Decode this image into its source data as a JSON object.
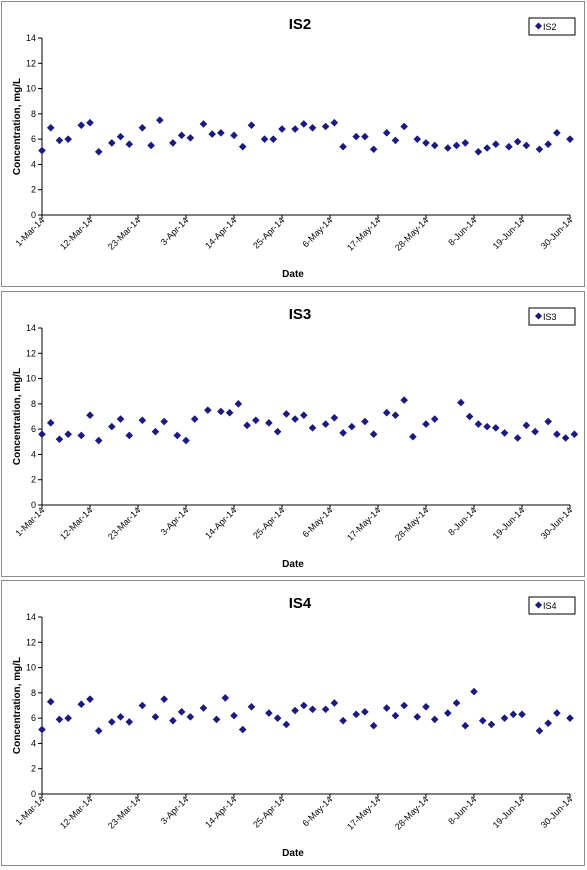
{
  "chart_data": [
    {
      "type": "scatter",
      "title": "IS2",
      "xlabel": "Date",
      "ylabel": "Concentration, mg/L",
      "ylim": [
        0,
        14
      ],
      "yticks": [
        "0",
        "2",
        "4",
        "6",
        "8",
        "10",
        "12",
        "14"
      ],
      "xlim": [
        "1-Mar-14",
        "30-Jun-14"
      ],
      "xticks": [
        "1-Mar-14",
        "12-Mar-14",
        "23-Mar-14",
        "3-Apr-14",
        "14-Apr-14",
        "25-Apr-14",
        "6-May-14",
        "17-May-14",
        "28-May-14",
        "8-Jun-14",
        "19-Jun-14",
        "30-Jun-14"
      ],
      "legend": "top-right",
      "marker_color": "#1a1a80",
      "series": [
        {
          "name": "IS2",
          "x": [
            "1-Mar-14",
            "3-Mar-14",
            "5-Mar-14",
            "7-Mar-14",
            "10-Mar-14",
            "12-Mar-14",
            "14-Mar-14",
            "17-Mar-14",
            "19-Mar-14",
            "21-Mar-14",
            "24-Mar-14",
            "26-Mar-14",
            "28-Mar-14",
            "31-Mar-14",
            "2-Apr-14",
            "4-Apr-14",
            "7-Apr-14",
            "9-Apr-14",
            "11-Apr-14",
            "14-Apr-14",
            "16-Apr-14",
            "18-Apr-14",
            "21-Apr-14",
            "23-Apr-14",
            "25-Apr-14",
            "28-Apr-14",
            "30-Apr-14",
            "2-May-14",
            "5-May-14",
            "7-May-14",
            "9-May-14",
            "12-May-14",
            "14-May-14",
            "16-May-14",
            "19-May-14",
            "21-May-14",
            "23-May-14",
            "26-May-14",
            "28-May-14",
            "30-May-14",
            "2-Jun-14",
            "4-Jun-14",
            "6-Jun-14",
            "9-Jun-14",
            "11-Jun-14",
            "13-Jun-14",
            "16-Jun-14",
            "18-Jun-14",
            "20-Jun-14",
            "23-Jun-14",
            "25-Jun-14",
            "27-Jun-14",
            "30-Jun-14"
          ],
          "y": [
            5.1,
            6.9,
            5.9,
            6.0,
            7.1,
            7.3,
            5.0,
            5.7,
            6.2,
            5.6,
            6.9,
            5.5,
            7.5,
            5.7,
            6.3,
            6.1,
            7.2,
            6.4,
            6.5,
            6.3,
            5.4,
            7.1,
            6.0,
            6.0,
            6.8,
            6.8,
            7.2,
            6.9,
            7.0,
            7.3,
            5.4,
            6.2,
            6.2,
            5.2,
            6.5,
            5.9,
            7.0,
            6.0,
            5.7,
            5.5,
            5.3,
            5.5,
            5.7,
            5.0,
            5.3,
            5.6,
            5.4,
            5.8,
            5.5,
            5.2,
            5.6,
            6.5,
            6.0
          ]
        }
      ]
    },
    {
      "type": "scatter",
      "title": "IS3",
      "xlabel": "Date",
      "ylabel": "Concentration, mg/L",
      "ylim": [
        0,
        14
      ],
      "yticks": [
        "0",
        "2",
        "4",
        "6",
        "8",
        "10",
        "12",
        "14"
      ],
      "xlim": [
        "1-Mar-14",
        "30-Jun-14"
      ],
      "xticks": [
        "1-Mar-14",
        "12-Mar-14",
        "23-Mar-14",
        "3-Apr-14",
        "14-Apr-14",
        "25-Apr-14",
        "6-May-14",
        "17-May-14",
        "28-May-14",
        "8-Jun-14",
        "19-Jun-14",
        "30-Jun-14"
      ],
      "legend": "top-right",
      "marker_color": "#1a1a80",
      "series": [
        {
          "name": "IS3",
          "x": [
            "1-Mar-14",
            "3-Mar-14",
            "5-Mar-14",
            "7-Mar-14",
            "10-Mar-14",
            "12-Mar-14",
            "14-Mar-14",
            "17-Mar-14",
            "19-Mar-14",
            "21-Mar-14",
            "24-Mar-14",
            "27-Mar-14",
            "29-Mar-14",
            "1-Apr-14",
            "3-Apr-14",
            "5-Apr-14",
            "8-Apr-14",
            "11-Apr-14",
            "13-Apr-14",
            "15-Apr-14",
            "17-Apr-14",
            "19-Apr-14",
            "22-Apr-14",
            "24-Apr-14",
            "26-Apr-14",
            "28-Apr-14",
            "30-Apr-14",
            "2-May-14",
            "5-May-14",
            "7-May-14",
            "9-May-14",
            "11-May-14",
            "14-May-14",
            "16-May-14",
            "19-May-14",
            "21-May-14",
            "23-May-14",
            "25-May-14",
            "28-May-14",
            "30-May-14",
            "5-Jun-14",
            "7-Jun-14",
            "9-Jun-14",
            "11-Jun-14",
            "13-Jun-14",
            "15-Jun-14",
            "18-Jun-14",
            "20-Jun-14",
            "22-Jun-14",
            "25-Jun-14",
            "27-Jun-14",
            "29-Jun-14",
            "1-Jul-14"
          ],
          "y": [
            5.6,
            6.5,
            5.2,
            5.6,
            5.5,
            7.1,
            5.1,
            6.2,
            6.8,
            5.5,
            6.7,
            5.8,
            6.6,
            5.5,
            5.1,
            6.8,
            7.5,
            7.4,
            7.3,
            8.0,
            6.3,
            6.7,
            6.5,
            5.8,
            7.2,
            6.8,
            7.1,
            6.1,
            6.4,
            6.9,
            5.7,
            6.2,
            6.6,
            5.6,
            7.3,
            7.1,
            8.3,
            5.4,
            6.4,
            6.8,
            8.1,
            7.0,
            6.4,
            6.2,
            6.1,
            5.7,
            5.3,
            6.3,
            5.8,
            6.6,
            5.6,
            5.3,
            5.6
          ]
        }
      ]
    },
    {
      "type": "scatter",
      "title": "IS4",
      "xlabel": "Date",
      "ylabel": "Concentration, mg/L",
      "ylim": [
        0,
        14
      ],
      "yticks": [
        "0",
        "2",
        "4",
        "6",
        "8",
        "10",
        "12",
        "14"
      ],
      "xlim": [
        "1-Mar-14",
        "30-Jun-14"
      ],
      "xticks": [
        "1-Mar-14",
        "12-Mar-14",
        "23-Mar-14",
        "3-Apr-14",
        "14-Apr-14",
        "25-Apr-14",
        "6-May-14",
        "17-May-14",
        "28-May-14",
        "8-Jun-14",
        "19-Jun-14",
        "30-Jun-14"
      ],
      "legend": "top-right",
      "marker_color": "#1a1a80",
      "series": [
        {
          "name": "IS4",
          "x": [
            "1-Mar-14",
            "3-Mar-14",
            "5-Mar-14",
            "7-Mar-14",
            "10-Mar-14",
            "12-Mar-14",
            "14-Mar-14",
            "17-Mar-14",
            "19-Mar-14",
            "21-Mar-14",
            "24-Mar-14",
            "27-Mar-14",
            "29-Mar-14",
            "31-Mar-14",
            "2-Apr-14",
            "4-Apr-14",
            "7-Apr-14",
            "10-Apr-14",
            "12-Apr-14",
            "14-Apr-14",
            "16-Apr-14",
            "18-Apr-14",
            "22-Apr-14",
            "24-Apr-14",
            "26-Apr-14",
            "28-Apr-14",
            "30-Apr-14",
            "2-May-14",
            "5-May-14",
            "7-May-14",
            "9-May-14",
            "12-May-14",
            "14-May-14",
            "16-May-14",
            "19-May-14",
            "21-May-14",
            "23-May-14",
            "26-May-14",
            "28-May-14",
            "30-May-14",
            "2-Jun-14",
            "4-Jun-14",
            "6-Jun-14",
            "8-Jun-14",
            "10-Jun-14",
            "12-Jun-14",
            "15-Jun-14",
            "17-Jun-14",
            "19-Jun-14",
            "23-Jun-14",
            "25-Jun-14",
            "27-Jun-14",
            "30-Jun-14"
          ],
          "y": [
            5.1,
            7.3,
            5.9,
            6.0,
            7.1,
            7.5,
            5.0,
            5.7,
            6.1,
            5.7,
            7.0,
            6.1,
            7.5,
            5.8,
            6.5,
            6.1,
            6.8,
            5.9,
            7.6,
            6.2,
            5.1,
            6.9,
            6.4,
            6.0,
            5.5,
            6.6,
            7.0,
            6.7,
            6.7,
            7.2,
            5.8,
            6.3,
            6.5,
            5.4,
            6.8,
            6.2,
            7.0,
            6.1,
            6.9,
            5.9,
            6.4,
            7.2,
            5.4,
            8.1,
            5.8,
            5.5,
            6.0,
            6.3,
            6.3,
            5.0,
            5.6,
            6.4,
            6.0
          ]
        }
      ]
    }
  ]
}
